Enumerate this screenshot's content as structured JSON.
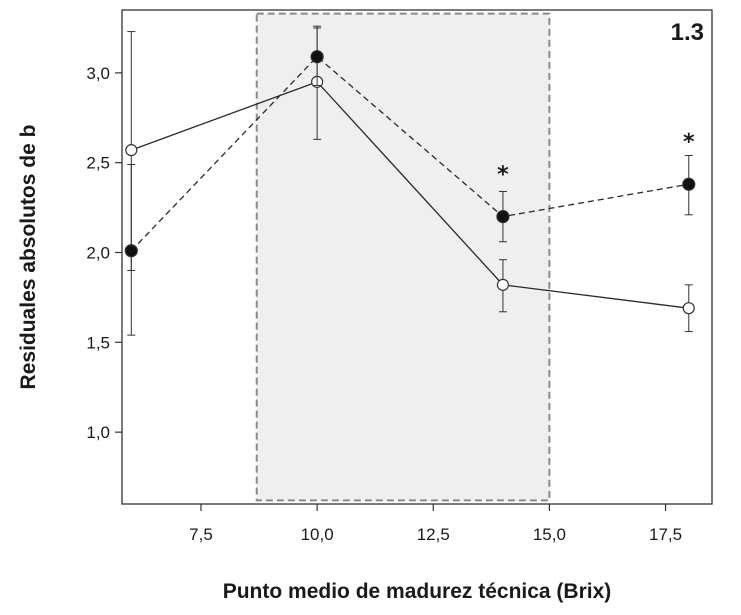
{
  "chart_data": {
    "type": "line",
    "panel_label": "1.3",
    "xlabel": "Punto medio de madurez técnica (Brix)",
    "ylabel": "Residuales absolutos de b",
    "xlim": [
      5.8,
      18.5
    ],
    "ylim": [
      0.6,
      3.35
    ],
    "x_ticks": [
      7.5,
      10.0,
      12.5,
      15.0,
      17.5
    ],
    "x_tick_labels": [
      "7,5",
      "10,0",
      "12,5",
      "15,0",
      "17,5"
    ],
    "y_ticks": [
      1.0,
      1.5,
      2.0,
      2.5,
      3.0
    ],
    "y_tick_labels": [
      "1,0",
      "1,5",
      "2,0",
      "2,5",
      "3,0"
    ],
    "grid": false,
    "highlight_region": {
      "x": [
        8.7,
        15.0
      ],
      "y": [
        0.62,
        3.33
      ]
    },
    "annotation_symbol": "*",
    "series": [
      {
        "marker": "open-circle",
        "line": "solid",
        "points": [
          {
            "x": 6.0,
            "y": 2.57,
            "lo": 1.9,
            "hi": 3.23
          },
          {
            "x": 10.0,
            "y": 2.95,
            "lo": 2.63,
            "hi": 3.26
          },
          {
            "x": 14.0,
            "y": 1.82,
            "lo": 1.67,
            "hi": 1.96
          },
          {
            "x": 18.0,
            "y": 1.69,
            "lo": 1.56,
            "hi": 1.82
          }
        ]
      },
      {
        "marker": "filled-circle",
        "line": "dashed",
        "points": [
          {
            "x": 6.0,
            "y": 2.01,
            "lo": 1.54,
            "hi": 2.49
          },
          {
            "x": 10.0,
            "y": 3.09,
            "lo": 2.93,
            "hi": 3.25
          },
          {
            "x": 14.0,
            "y": 2.2,
            "lo": 2.06,
            "hi": 2.34
          },
          {
            "x": 18.0,
            "y": 2.38,
            "lo": 2.21,
            "hi": 2.54
          }
        ]
      }
    ],
    "annotations": [
      {
        "x": 14.0,
        "y": 2.44,
        "text": "*"
      },
      {
        "x": 18.0,
        "y": 2.62,
        "text": "*"
      }
    ]
  }
}
